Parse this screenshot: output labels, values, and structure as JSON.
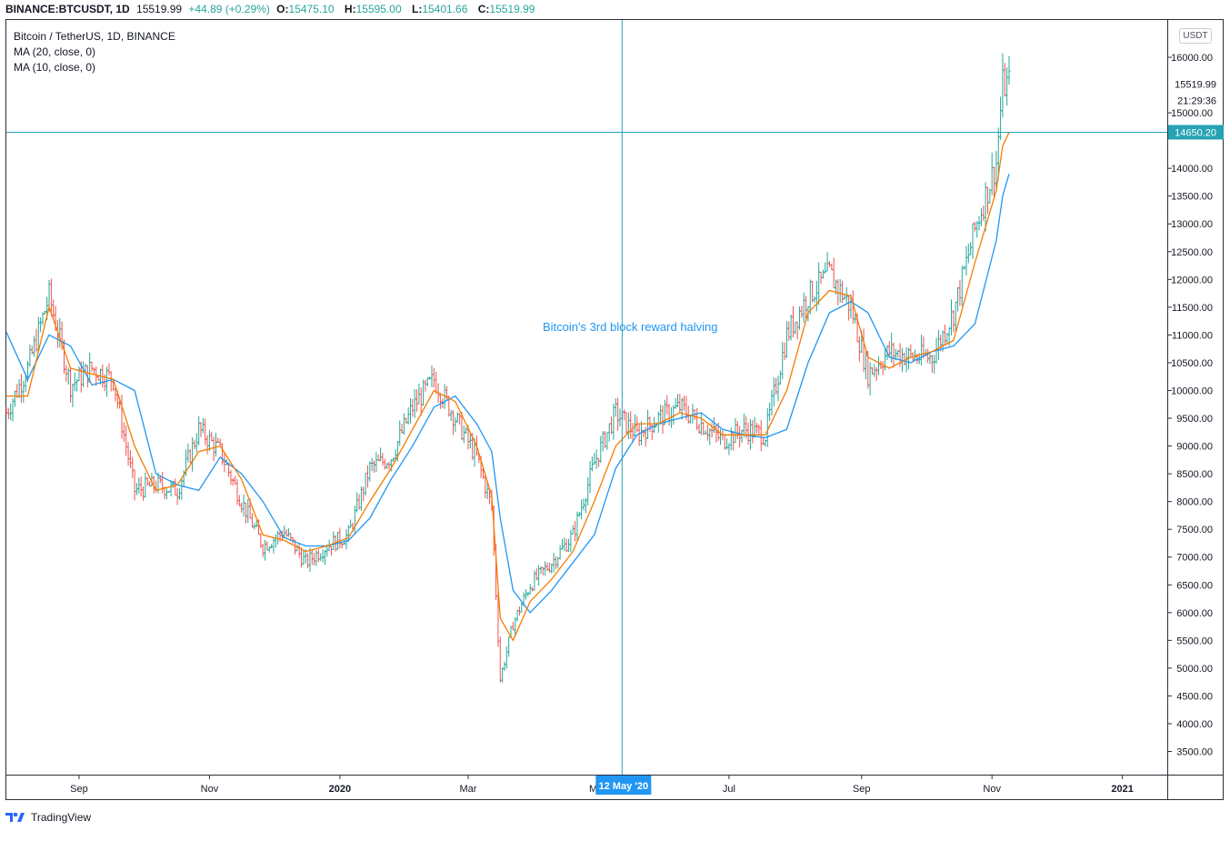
{
  "header": {
    "symbol": "BINANCE:BTCUSDT, 1D",
    "price": "15519.99",
    "change": "+44.89 (+0.29%)",
    "o_label": "O:",
    "o_val": "15475.10",
    "h_label": "H:",
    "h_val": "15595.00",
    "l_label": "L:",
    "l_val": "15401.66",
    "c_label": "C:",
    "c_val": "15519.99"
  },
  "legend": {
    "title": "Bitcoin / TetherUS, 1D, BINANCE",
    "ma20": "MA (20, close, 0)",
    "ma10": "MA (10, close, 0)"
  },
  "annotation": "Bitcoin's 3rd block reward halving",
  "currency_button": "USDT",
  "price_labels": {
    "last_price": "15519.99",
    "countdown": "21:29:36",
    "crosshair_price": "14650.20",
    "crosshair_date": "12 May '20"
  },
  "footer": {
    "brand": "TradingView"
  },
  "colors": {
    "up": "#26a69a",
    "down": "#ef5350",
    "ma20": "#2196f3",
    "ma10": "#f57c00",
    "crosshair": "#26a2b3",
    "annotation": "#2196f3"
  },
  "chart_data": {
    "type": "line",
    "title": "Bitcoin / TetherUS, 1D, BINANCE",
    "ylim": [
      3200,
      16500
    ],
    "x_ticks": [
      "Sep",
      "Nov",
      "2020",
      "Mar",
      "May",
      "Jul",
      "Sep",
      "Nov",
      "2021"
    ],
    "y_ticks": [
      "3500.00",
      "4000.00",
      "4500.00",
      "5000.00",
      "5500.00",
      "6000.00",
      "6500.00",
      "7000.00",
      "7500.00",
      "8000.00",
      "8500.00",
      "9000.00",
      "9500.00",
      "10000.00",
      "10500.00",
      "11000.00",
      "11500.00",
      "12000.00",
      "12500.00",
      "13000.00",
      "13500.00",
      "14000.00",
      "15000.00",
      "16000.00"
    ],
    "x": [
      "2019-07-29",
      "2019-08-08",
      "2019-08-18",
      "2019-08-28",
      "2019-09-07",
      "2019-09-17",
      "2019-09-27",
      "2019-10-07",
      "2019-10-17",
      "2019-10-27",
      "2019-11-06",
      "2019-11-16",
      "2019-11-26",
      "2019-12-06",
      "2019-12-16",
      "2019-12-26",
      "2020-01-05",
      "2020-01-15",
      "2020-01-25",
      "2020-02-04",
      "2020-02-14",
      "2020-02-24",
      "2020-03-05",
      "2020-03-12",
      "2020-03-16",
      "2020-03-22",
      "2020-03-30",
      "2020-04-09",
      "2020-04-19",
      "2020-04-29",
      "2020-05-09",
      "2020-05-19",
      "2020-05-29",
      "2020-06-08",
      "2020-06-18",
      "2020-06-28",
      "2020-07-08",
      "2020-07-18",
      "2020-07-28",
      "2020-08-07",
      "2020-08-17",
      "2020-08-27",
      "2020-09-04",
      "2020-09-14",
      "2020-09-24",
      "2020-10-04",
      "2020-10-14",
      "2020-10-24",
      "2020-11-03",
      "2020-11-06",
      "2020-11-09"
    ],
    "series": [
      {
        "name": "Close",
        "values": [
          9600,
          10400,
          11700,
          10100,
          10400,
          10200,
          8200,
          8300,
          8200,
          9300,
          8900,
          8000,
          7200,
          7450,
          6900,
          7200,
          7400,
          8600,
          8800,
          9700,
          10200,
          9500,
          8800,
          7900,
          4800,
          5800,
          6500,
          6900,
          7400,
          8700,
          9600,
          9200,
          9500,
          9700,
          9400,
          9100,
          9300,
          9200,
          11000,
          11700,
          12100,
          11500,
          10300,
          10700,
          10600,
          10600,
          11400,
          12900,
          14100,
          15500,
          15520
        ]
      },
      {
        "name": "MA (10, close, 0)",
        "values": [
          9900,
          9900,
          11500,
          10400,
          10300,
          10200,
          9000,
          8200,
          8300,
          8900,
          9000,
          8400,
          7400,
          7300,
          7100,
          7200,
          7350,
          8000,
          8600,
          9300,
          10000,
          9800,
          9000,
          8100,
          5900,
          5500,
          6200,
          6600,
          7100,
          8000,
          9000,
          9400,
          9400,
          9600,
          9500,
          9200,
          9200,
          9200,
          10000,
          11400,
          11800,
          11700,
          10600,
          10400,
          10600,
          10700,
          10900,
          12300,
          13600,
          14400,
          14650
        ]
      },
      {
        "name": "MA (20, close, 0)",
        "values": [
          11050,
          10200,
          11000,
          10800,
          10100,
          10200,
          10000,
          8500,
          8300,
          8200,
          8800,
          8500,
          8000,
          7350,
          7200,
          7200,
          7300,
          7700,
          8400,
          9000,
          9700,
          9900,
          9400,
          8900,
          7700,
          6400,
          6000,
          6400,
          6900,
          7400,
          8600,
          9200,
          9400,
          9500,
          9600,
          9300,
          9200,
          9150,
          9300,
          10500,
          11400,
          11600,
          11400,
          10600,
          10500,
          10700,
          10800,
          11200,
          12700,
          13500,
          13900
        ]
      }
    ]
  }
}
